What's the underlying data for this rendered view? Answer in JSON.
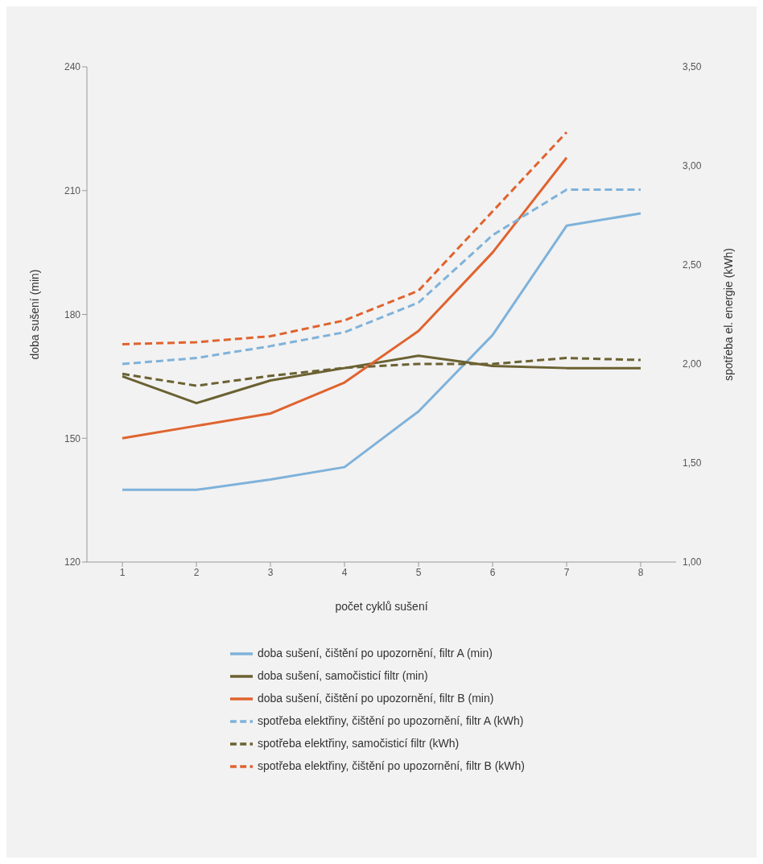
{
  "chart_data": {
    "type": "line",
    "xlabel": "počet cyklů sušení",
    "ylabel": "doba sušení (min)",
    "y2label": "spotřeba el. energie (kWh)",
    "categories": [
      "1",
      "2",
      "3",
      "4",
      "5",
      "6",
      "7",
      "8"
    ],
    "ylim": [
      120,
      240
    ],
    "yticks": [
      120,
      150,
      180,
      210,
      240
    ],
    "y2lim": [
      1,
      3.5
    ],
    "y2ticks": [
      {
        "value": 1,
        "label": "1,00"
      },
      {
        "value": 1.5,
        "label": "1,50"
      },
      {
        "value": 2,
        "label": "2,00"
      },
      {
        "value": 2.5,
        "label": "2,50"
      },
      {
        "value": 3,
        "label": "3,00"
      },
      {
        "value": 3.5,
        "label": "3,50"
      }
    ],
    "legend": "bottom",
    "marker": "none",
    "grid": false,
    "series": [
      {
        "name": "doba sušení, čištění po upozornění, filtr A (min)",
        "color": "#7fb2da",
        "line_style": "solid",
        "values": [
          137.5,
          137.5,
          140,
          143,
          156.5,
          175,
          201.5,
          204.5
        ]
      },
      {
        "name": "doba sušení, samočisticí filtr (min)",
        "color": "#6b6132",
        "line_style": "solid",
        "values": [
          165,
          158.5,
          164,
          167,
          170,
          167.5,
          167,
          167
        ]
      },
      {
        "name": "doba sušení, čištění po upozornění, filtr B (min)",
        "color": "#e0632e",
        "line_style": "solid",
        "values": [
          150,
          153,
          156,
          163.5,
          176,
          195,
          218,
          null
        ]
      },
      {
        "name": "spotřeba elektřiny, čištění po upozornění, filtr A (kWh)",
        "color": "#7fb2da",
        "line_style": "dashed",
        "axis": "y2",
        "values": [
          2,
          2.03,
          2.09,
          2.16,
          2.31,
          2.65,
          2.88,
          2.88
        ]
      },
      {
        "name": "spotřeba elektřiny, samočisticí filtr (kWh)",
        "color": "#6b6132",
        "line_style": "dashed",
        "axis": "y2",
        "values": [
          1.95,
          1.89,
          1.94,
          1.98,
          2,
          2,
          2.03,
          2.02
        ]
      },
      {
        "name": "spotřeba elektřiny, čištění po upozornění, filtr B (kWh)",
        "color": "#e0632e",
        "line_style": "dashed",
        "axis": "y2",
        "values": [
          2.1,
          2.11,
          2.14,
          2.22,
          2.37,
          2.77,
          3.17,
          null
        ]
      }
    ]
  }
}
